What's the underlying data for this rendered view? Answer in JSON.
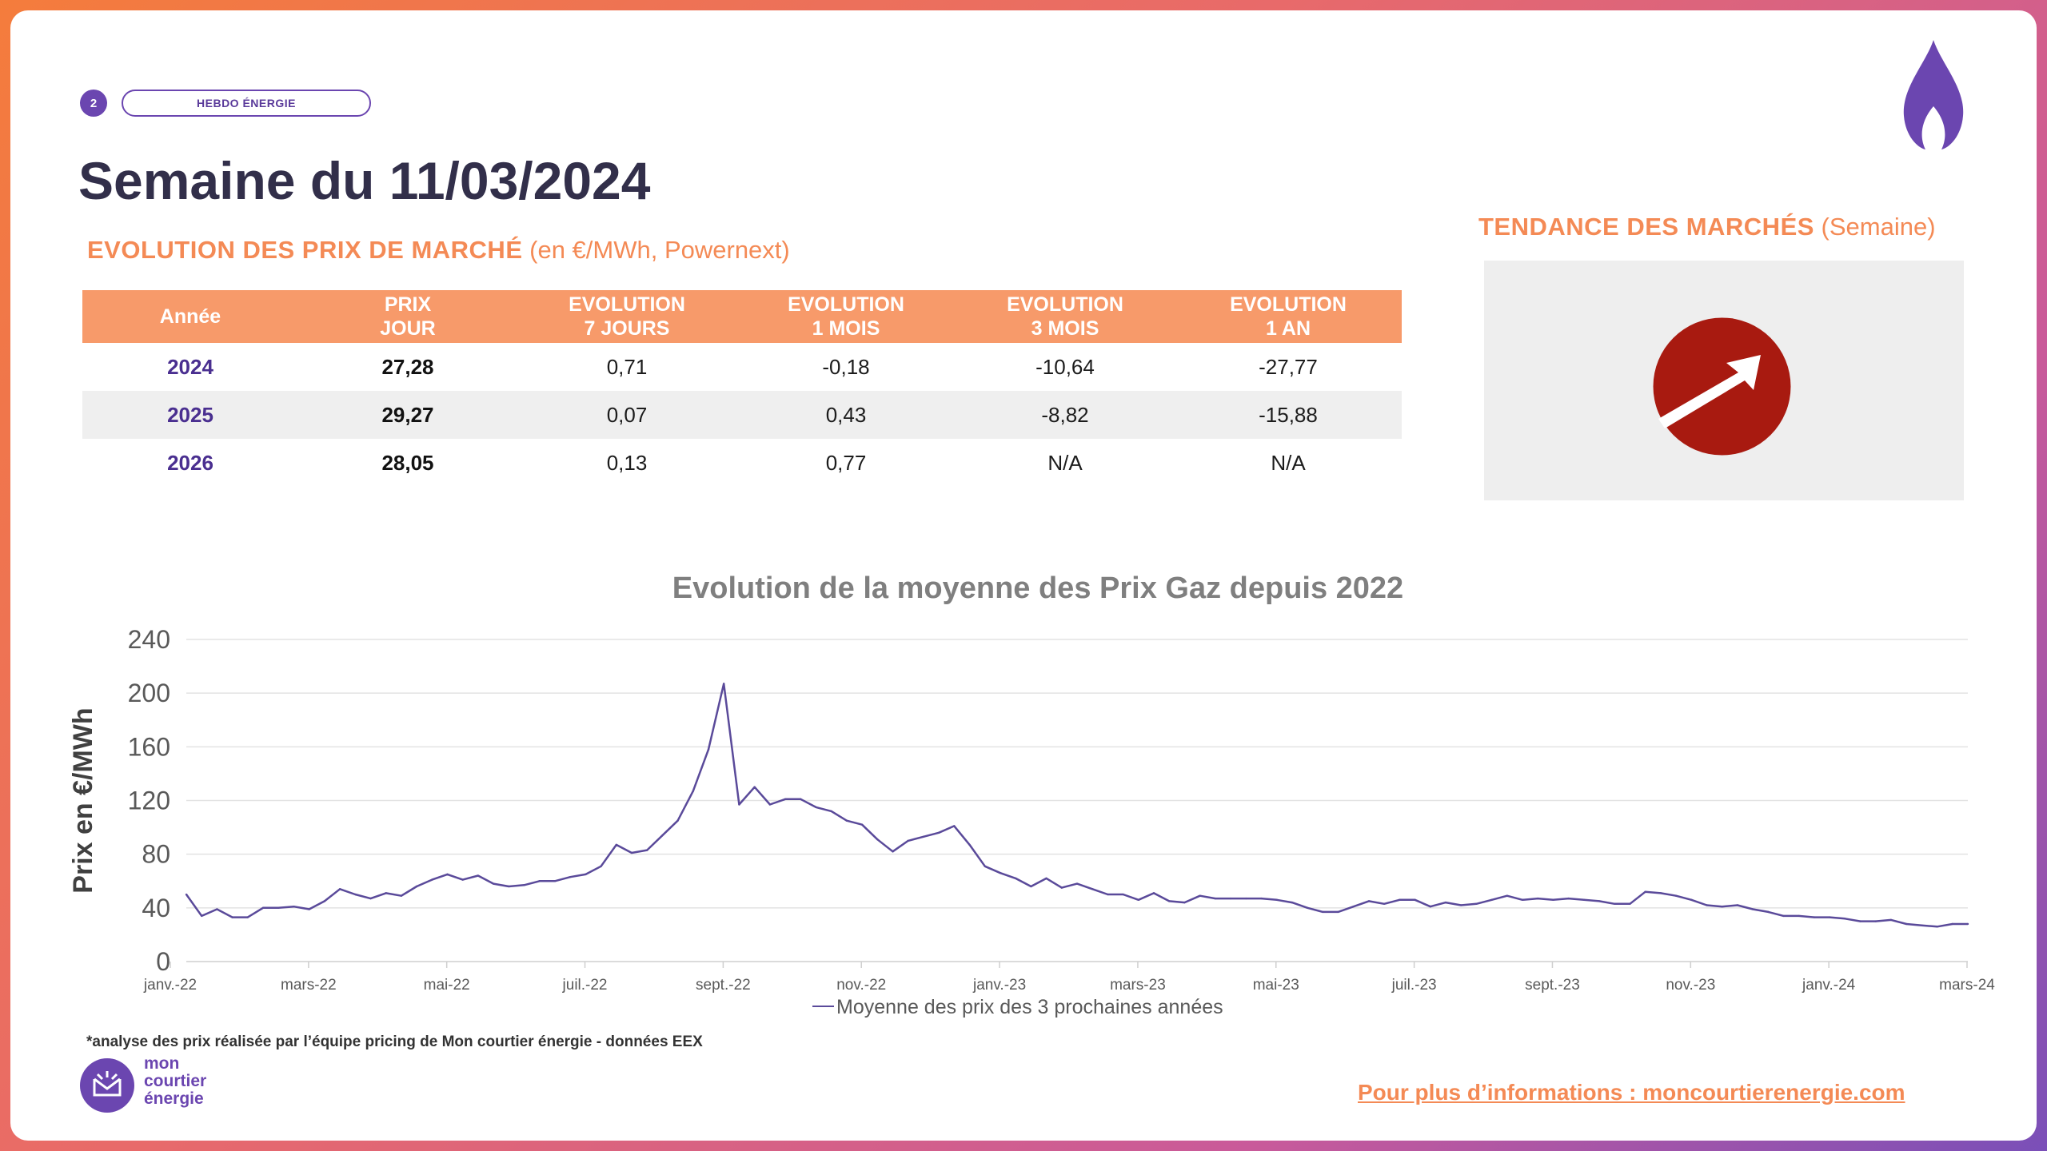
{
  "header": {
    "page_number": "2",
    "tag": "HEBDO ÉNERGIE",
    "title": "Semaine du 11/03/2024"
  },
  "market_prices": {
    "heading": "EVOLUTION DES PRIX DE MARCHÉ",
    "heading_unit": "(en €/MWh, Powernext)",
    "columns": [
      [
        "Année"
      ],
      [
        "PRIX",
        "JOUR"
      ],
      [
        "EVOLUTION",
        "7 JOURS"
      ],
      [
        "EVOLUTION",
        "1 MOIS"
      ],
      [
        "EVOLUTION",
        "3 MOIS"
      ],
      [
        "EVOLUTION",
        "1 AN"
      ]
    ],
    "rows": [
      [
        "2024",
        "27,28",
        "0,71",
        "-0,18",
        "-10,64",
        "-27,77"
      ],
      [
        "2025",
        "29,27",
        "0,07",
        "0,43",
        "-8,82",
        "-15,88"
      ],
      [
        "2026",
        "28,05",
        "0,13",
        "0,77",
        "N/A",
        "N/A"
      ]
    ]
  },
  "trend": {
    "heading": "TENDANCE DES MARCHÉS",
    "heading_sub": "(Semaine)",
    "direction": "hausse",
    "icon": "arrow-up-right-icon",
    "color": "#a81a10"
  },
  "chart_data": {
    "type": "line",
    "title": "Evolution de la moyenne des Prix Gaz depuis 2022",
    "ylabel": "Prix en €/MWh",
    "xlabel": "",
    "ylim": [
      0,
      240
    ],
    "yticks": [
      0,
      40,
      80,
      120,
      160,
      200,
      240
    ],
    "grid": true,
    "legend_position": "bottom",
    "x_tick_labels": [
      "janv.-22",
      "mars-22",
      "mai-22",
      "juil.-22",
      "sept.-22",
      "nov.-22",
      "janv.-23",
      "mars-23",
      "mai-23",
      "juil.-23",
      "sept.-23",
      "nov.-23",
      "janv.-24",
      "mars-24"
    ],
    "series": [
      {
        "name": "Moyenne des prix des 3 prochaines années",
        "color": "#5a4a9a",
        "values": [
          50,
          34,
          39,
          33,
          33,
          40,
          40,
          41,
          39,
          45,
          54,
          50,
          47,
          51,
          49,
          56,
          61,
          65,
          61,
          64,
          58,
          56,
          57,
          60,
          60,
          63,
          65,
          71,
          87,
          81,
          83,
          94,
          105,
          127,
          158,
          207,
          117,
          130,
          117,
          121,
          121,
          115,
          112,
          105,
          102,
          91,
          82,
          90,
          93,
          96,
          101,
          87,
          71,
          66,
          62,
          56,
          62,
          55,
          58,
          54,
          50,
          50,
          46,
          51,
          45,
          44,
          49,
          47,
          47,
          47,
          47,
          46,
          44,
          40,
          37,
          37,
          41,
          45,
          43,
          46,
          46,
          41,
          44,
          42,
          43,
          46,
          49,
          46,
          47,
          46,
          47,
          46,
          45,
          43,
          43,
          52,
          51,
          49,
          46,
          42,
          41,
          42,
          39,
          37,
          34,
          34,
          33,
          33,
          32,
          30,
          30,
          31,
          28,
          27,
          26,
          28,
          28
        ]
      }
    ]
  },
  "footer": {
    "footnote": "*analyse des prix réalisée par l’équipe pricing de Mon courtier énergie -  données EEX",
    "logo_line1": "mon",
    "logo_line2": "courtier",
    "logo_line3": "énergie",
    "more_info": "Pour plus d’informations : moncourtierenergie.com"
  },
  "colors": {
    "accent_orange": "#f48a55",
    "table_header": "#f79a6a",
    "brand_purple": "#6b46b0",
    "title_dark": "#322f4a"
  }
}
